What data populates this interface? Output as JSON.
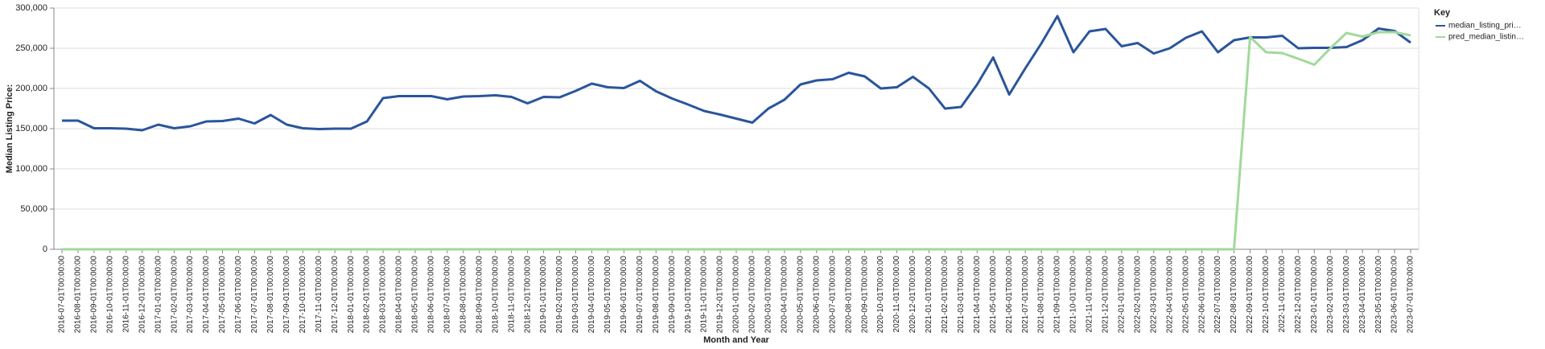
{
  "chart_data": {
    "type": "line",
    "y_axis_title": "Median Listing Price:",
    "x_axis_title": "Month and Year",
    "legend_title": "Key",
    "legend_position": "right",
    "grid": true,
    "categories": [
      "2016-07-01T00:00:00",
      "2016-08-01T00:00:00",
      "2016-09-01T00:00:00",
      "2016-10-01T00:00:00",
      "2016-11-01T00:00:00",
      "2016-12-01T00:00:00",
      "2017-01-01T00:00:00",
      "2017-02-01T00:00:00",
      "2017-03-01T00:00:00",
      "2017-04-01T00:00:00",
      "2017-05-01T00:00:00",
      "2017-06-01T00:00:00",
      "2017-07-01T00:00:00",
      "2017-08-01T00:00:00",
      "2017-09-01T00:00:00",
      "2017-10-01T00:00:00",
      "2017-11-01T00:00:00",
      "2017-12-01T00:00:00",
      "2018-01-01T00:00:00",
      "2018-02-01T00:00:00",
      "2018-03-01T00:00:00",
      "2018-04-01T00:00:00",
      "2018-05-01T00:00:00",
      "2018-06-01T00:00:00",
      "2018-07-01T00:00:00",
      "2018-08-01T00:00:00",
      "2018-09-01T00:00:00",
      "2018-10-01T00:00:00",
      "2018-11-01T00:00:00",
      "2018-12-01T00:00:00",
      "2019-01-01T00:00:00",
      "2019-02-01T00:00:00",
      "2019-03-01T00:00:00",
      "2019-04-01T00:00:00",
      "2019-05-01T00:00:00",
      "2019-06-01T00:00:00",
      "2019-07-01T00:00:00",
      "2019-08-01T00:00:00",
      "2019-09-01T00:00:00",
      "2019-10-01T00:00:00",
      "2019-11-01T00:00:00",
      "2019-12-01T00:00:00",
      "2020-01-01T00:00:00",
      "2020-02-01T00:00:00",
      "2020-03-01T00:00:00",
      "2020-04-01T00:00:00",
      "2020-05-01T00:00:00",
      "2020-06-01T00:00:00",
      "2020-07-01T00:00:00",
      "2020-08-01T00:00:00",
      "2020-09-01T00:00:00",
      "2020-10-01T00:00:00",
      "2020-11-01T00:00:00",
      "2020-12-01T00:00:00",
      "2021-01-01T00:00:00",
      "2021-02-01T00:00:00",
      "2021-03-01T00:00:00",
      "2021-04-01T00:00:00",
      "2021-05-01T00:00:00",
      "2021-06-01T00:00:00",
      "2021-07-01T00:00:00",
      "2021-08-01T00:00:00",
      "2021-09-01T00:00:00",
      "2021-10-01T00:00:00",
      "2021-11-01T00:00:00",
      "2021-12-01T00:00:00",
      "2022-01-01T00:00:00",
      "2022-02-01T00:00:00",
      "2022-03-01T00:00:00",
      "2022-04-01T00:00:00",
      "2022-05-01T00:00:00",
      "2022-06-01T00:00:00",
      "2022-07-01T00:00:00",
      "2022-08-01T00:00:00",
      "2022-09-01T00:00:00",
      "2022-10-01T00:00:00",
      "2022-11-01T00:00:00",
      "2022-12-01T00:00:00",
      "2023-01-01T00:00:00",
      "2023-02-01T00:00:00",
      "2023-03-01T00:00:00",
      "2023-04-01T00:00:00",
      "2023-05-01T00:00:00",
      "2023-06-01T00:00:00",
      "2023-07-01T00:00:00"
    ],
    "series": [
      {
        "name": "median_listing_pri…",
        "color": "#2a559c",
        "values": [
          160000,
          160000,
          150500,
          150500,
          150000,
          148000,
          155000,
          150500,
          153000,
          159000,
          159500,
          162500,
          156500,
          167000,
          155000,
          150500,
          149500,
          150000,
          150000,
          159000,
          188000,
          190500,
          190500,
          190500,
          186500,
          190000,
          190500,
          191500,
          189500,
          181500,
          189500,
          189000,
          197000,
          206000,
          201500,
          200500,
          209500,
          196500,
          187500,
          180000,
          172000,
          167500,
          162500,
          157500,
          175000,
          186000,
          205000,
          210000,
          211500,
          219500,
          215000,
          200000,
          201500,
          214500,
          200000,
          175000,
          177000,
          205000,
          238500,
          192500,
          225000,
          256000,
          290000,
          245000,
          271000,
          274000,
          252500,
          256500,
          243500,
          250000,
          263000,
          271000,
          245000,
          260000,
          263500,
          263500,
          265500,
          250000,
          250500,
          250500,
          251500,
          260000,
          274500,
          271500,
          257000
        ]
      },
      {
        "name": "pred_median_listin…",
        "color": "#a1d99b",
        "values": [
          0,
          0,
          0,
          0,
          0,
          0,
          0,
          0,
          0,
          0,
          0,
          0,
          0,
          0,
          0,
          0,
          0,
          0,
          0,
          0,
          0,
          0,
          0,
          0,
          0,
          0,
          0,
          0,
          0,
          0,
          0,
          0,
          0,
          0,
          0,
          0,
          0,
          0,
          0,
          0,
          0,
          0,
          0,
          0,
          0,
          0,
          0,
          0,
          0,
          0,
          0,
          0,
          0,
          0,
          0,
          0,
          0,
          0,
          0,
          0,
          0,
          0,
          0,
          0,
          0,
          0,
          0,
          0,
          0,
          0,
          0,
          0,
          0,
          0,
          264000,
          245000,
          244000,
          237000,
          229500,
          250000,
          269000,
          264500,
          270000,
          270000,
          266000
        ]
      }
    ],
    "ylim": [
      0,
      300000
    ],
    "yticks": [
      0,
      {
        "value": 50000,
        "label": "50,000"
      },
      {
        "value": 100000,
        "label": "100,000"
      },
      {
        "value": 150000,
        "label": "150,000"
      },
      {
        "value": 200000,
        "label": "200,000"
      },
      {
        "value": 250000,
        "label": "250,000"
      },
      {
        "value": 300000,
        "label": "300,000"
      }
    ]
  }
}
